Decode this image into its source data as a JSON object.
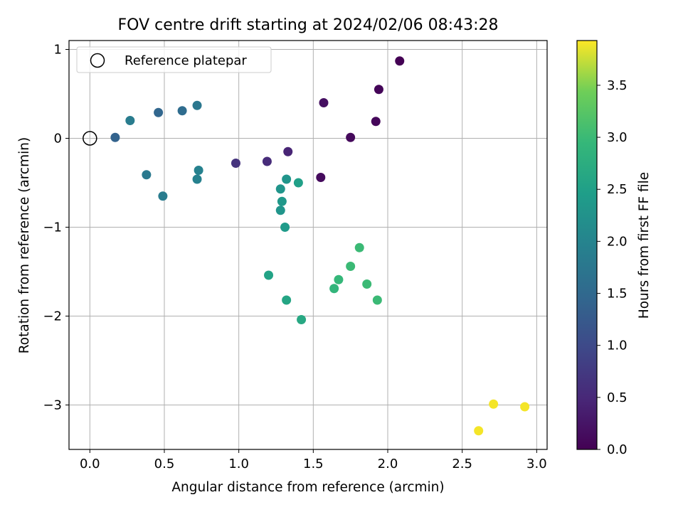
{
  "chart_data": {
    "type": "scatter",
    "title": "FOV centre drift starting at 2024/02/06 08:43:28",
    "xlabel": "Angular distance from reference (arcmin)",
    "ylabel": "Rotation from reference (arcmin)",
    "xlim": [
      -0.14,
      3.07
    ],
    "ylim": [
      -3.5,
      1.1
    ],
    "x_ticks": [
      0.0,
      0.5,
      1.0,
      1.5,
      2.0,
      2.5,
      3.0
    ],
    "x_tick_labels": [
      "0.0",
      "0.5",
      "1.0",
      "1.5",
      "2.0",
      "2.5",
      "3.0"
    ],
    "y_ticks": [
      1,
      0,
      -1,
      -2,
      -3
    ],
    "y_tick_labels": [
      "1",
      "0",
      "−1",
      "−2",
      "−3"
    ],
    "grid": true,
    "legend": {
      "placement": "top-left",
      "entries": [
        {
          "label": "Reference platepar",
          "marker": "open-circle"
        }
      ]
    },
    "reference_point": {
      "x": 0.0,
      "y": 0.0
    },
    "colorbar": {
      "label": "Hours from first FF file",
      "colormap": "viridis",
      "range": [
        0.0,
        3.93
      ],
      "ticks": [
        0.0,
        0.5,
        1.0,
        1.5,
        2.0,
        2.5,
        3.0,
        3.5
      ],
      "tick_labels": [
        "0.0",
        "0.5",
        "1.0",
        "1.5",
        "2.0",
        "2.5",
        "3.0",
        "3.5"
      ]
    },
    "points": [
      {
        "x": 2.08,
        "y": 0.87,
        "t": 0.0
      },
      {
        "x": 1.94,
        "y": 0.55,
        "t": 0.05
      },
      {
        "x": 1.92,
        "y": 0.19,
        "t": 0.08
      },
      {
        "x": 1.75,
        "y": 0.01,
        "t": 0.1
      },
      {
        "x": 1.55,
        "y": -0.44,
        "t": 0.12
      },
      {
        "x": 1.57,
        "y": 0.4,
        "t": 0.18
      },
      {
        "x": 1.33,
        "y": -0.15,
        "t": 0.45
      },
      {
        "x": 1.19,
        "y": -0.26,
        "t": 0.55
      },
      {
        "x": 0.98,
        "y": -0.28,
        "t": 0.65
      },
      {
        "x": 0.17,
        "y": 0.01,
        "t": 1.4
      },
      {
        "x": 0.46,
        "y": 0.29,
        "t": 1.45
      },
      {
        "x": 0.62,
        "y": 0.31,
        "t": 1.55
      },
      {
        "x": 0.72,
        "y": 0.37,
        "t": 1.75
      },
      {
        "x": 0.27,
        "y": 0.2,
        "t": 1.85
      },
      {
        "x": 0.38,
        "y": -0.41,
        "t": 1.8
      },
      {
        "x": 0.49,
        "y": -0.65,
        "t": 1.85
      },
      {
        "x": 0.73,
        "y": -0.36,
        "t": 1.95
      },
      {
        "x": 0.72,
        "y": -0.46,
        "t": 1.95
      },
      {
        "x": 1.32,
        "y": -0.46,
        "t": 2.3
      },
      {
        "x": 1.28,
        "y": -0.57,
        "t": 2.3
      },
      {
        "x": 1.29,
        "y": -0.71,
        "t": 2.35
      },
      {
        "x": 1.28,
        "y": -0.81,
        "t": 2.3
      },
      {
        "x": 1.31,
        "y": -1.0,
        "t": 2.4
      },
      {
        "x": 1.4,
        "y": -0.5,
        "t": 2.5
      },
      {
        "x": 1.2,
        "y": -1.54,
        "t": 2.55
      },
      {
        "x": 1.32,
        "y": -1.82,
        "t": 2.6
      },
      {
        "x": 1.42,
        "y": -2.04,
        "t": 2.65
      },
      {
        "x": 1.64,
        "y": -1.69,
        "t": 2.9
      },
      {
        "x": 1.67,
        "y": -1.59,
        "t": 2.95
      },
      {
        "x": 1.75,
        "y": -1.44,
        "t": 3.0
      },
      {
        "x": 1.81,
        "y": -1.23,
        "t": 3.0
      },
      {
        "x": 1.86,
        "y": -1.64,
        "t": 3.0
      },
      {
        "x": 1.93,
        "y": -1.82,
        "t": 3.0
      },
      {
        "x": 2.61,
        "y": -3.29,
        "t": 3.9
      },
      {
        "x": 2.71,
        "y": -2.99,
        "t": 3.9
      },
      {
        "x": 2.92,
        "y": -3.02,
        "t": 3.9
      }
    ]
  }
}
